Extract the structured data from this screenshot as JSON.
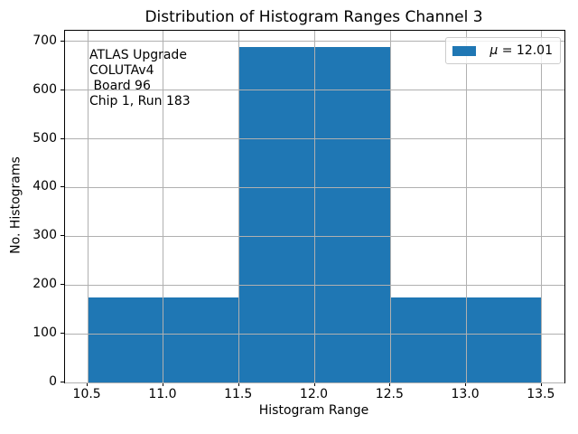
{
  "chart_data": {
    "type": "bar",
    "subtype": "histogram",
    "title": "Distribution of Histogram Ranges Channel 3",
    "xlabel": "Histogram Range",
    "ylabel": "No. Histograms",
    "bin_edges": [
      10.5,
      11.5,
      12.5,
      13.5
    ],
    "counts": [
      175,
      688,
      175
    ],
    "bar_color": "#1f77b4",
    "xlim": [
      10.35,
      13.65
    ],
    "ylim": [
      0,
      722
    ],
    "xticks": [
      10.5,
      11.0,
      11.5,
      12.0,
      12.5,
      13.0,
      13.5
    ],
    "xtick_labels": [
      "10.5",
      "11.0",
      "11.5",
      "12.0",
      "12.5",
      "13.0",
      "13.5"
    ],
    "yticks": [
      0,
      100,
      200,
      300,
      400,
      500,
      600,
      700
    ],
    "ytick_labels": [
      "0",
      "100",
      "200",
      "300",
      "400",
      "500",
      "600",
      "700"
    ],
    "grid": true,
    "grid_color": "#b0b0b0",
    "legend": {
      "position": "upper right",
      "entries": [
        {
          "symbol": "μ",
          "label_rest": " = 12.01",
          "swatch_color": "#1f77b4"
        }
      ]
    },
    "annotation": {
      "lines": [
        "ATLAS Upgrade",
        "COLUTAv4",
        " Board 96",
        "Chip 1, Run 183"
      ]
    }
  }
}
